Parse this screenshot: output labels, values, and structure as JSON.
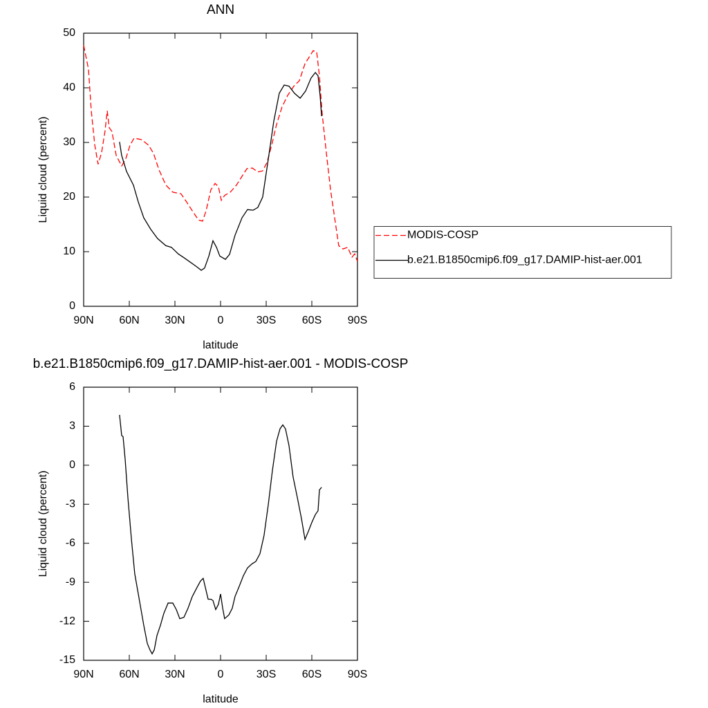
{
  "chart_data": [
    {
      "type": "line",
      "title": "ANN",
      "xlabel": "latitude",
      "ylabel": "Liquid cloud (percent)",
      "xlim": [
        90,
        -90
      ],
      "xticks": [
        {
          "value": 90,
          "label": "90N"
        },
        {
          "value": 60,
          "label": "60N"
        },
        {
          "value": 30,
          "label": "30N"
        },
        0,
        {
          "value": -30,
          "label": "30S"
        },
        {
          "value": -60,
          "label": "60S"
        },
        {
          "value": -90,
          "label": "90S"
        }
      ],
      "ylim": [
        0,
        50
      ],
      "yticks": [
        0,
        10,
        20,
        30,
        40,
        50
      ],
      "legend": "right",
      "series": [
        {
          "name": "MODIS-COSP",
          "color": "#ff0000",
          "style": "dashed",
          "x": [
            90,
            86.8,
            85,
            82.7,
            80.5,
            78.2,
            76,
            74.5,
            73.2,
            71.4,
            68.6,
            65,
            62.3,
            59.5,
            56.8,
            51.8,
            47.3,
            44.1,
            40.5,
            36,
            31.4,
            26,
            22.3,
            17.7,
            14.5,
            11.8,
            9.5,
            6.4,
            3.6,
            1.4,
            -0.5,
            -2.7,
            -6.4,
            -10.5,
            -14.1,
            -17.3,
            -20.9,
            -24.5,
            -27.7,
            -30.5,
            -33.6,
            -36.8,
            -40.4,
            -44.1,
            -48.2,
            -51.8,
            -55.5,
            -59.1,
            -60.9,
            -63.2,
            -65,
            -66.8,
            -69.5,
            -72.3,
            -75,
            -77.7,
            -80.5,
            -83.6,
            -86.4,
            -88.2,
            -90
          ],
          "values": [
            47.8,
            43.4,
            35.8,
            29.5,
            26,
            28.2,
            32,
            35.8,
            32.7,
            32,
            27.6,
            25.7,
            27,
            29.5,
            30.8,
            30.5,
            29.5,
            28,
            25,
            22.2,
            20.9,
            20.6,
            19.1,
            17.1,
            15.8,
            15.6,
            17.5,
            21.3,
            22.5,
            21.9,
            19.4,
            20.3,
            20.9,
            22.2,
            23.8,
            25.2,
            25.3,
            24.6,
            24.8,
            26.3,
            29.5,
            33.3,
            36.5,
            38.6,
            40.3,
            41.3,
            44.4,
            46,
            46.8,
            46.6,
            42.2,
            35.2,
            28.2,
            21.3,
            16.2,
            11.1,
            10.5,
            10.8,
            9,
            9.6,
            8.2
          ]
        },
        {
          "name": "b.e21.B1850cmip6.f09_g17.DAMIP-hist-aer.001",
          "color": "#000000",
          "style": "solid",
          "x": [
            66.4,
            65,
            61.8,
            57.3,
            54.1,
            50.5,
            45.9,
            41.4,
            36,
            32.3,
            27.8,
            24.1,
            19.5,
            15.5,
            12.7,
            10.5,
            7.7,
            5,
            2.7,
            0.5,
            -3.2,
            -5.9,
            -9.5,
            -14.1,
            -17.7,
            -21.4,
            -24.5,
            -27.7,
            -31.4,
            -35,
            -38.6,
            -41.8,
            -45,
            -48.6,
            -52.3,
            -55.9,
            -59.5,
            -62.3,
            -64.1,
            -65.5,
            -66.4
          ],
          "values": [
            30.1,
            27.6,
            24.7,
            22.2,
            19.1,
            16.2,
            14.1,
            12.4,
            11.1,
            10.8,
            9.6,
            8.9,
            8,
            7.2,
            6.6,
            7,
            9.2,
            12,
            10.8,
            9.2,
            8.6,
            9.5,
            13,
            16.2,
            17.7,
            17.6,
            18.1,
            20,
            27,
            33.9,
            39,
            40.5,
            40.3,
            39,
            38.1,
            39.4,
            41.8,
            42.8,
            42.2,
            38.4,
            34.8
          ]
        }
      ]
    },
    {
      "type": "line",
      "title": "b.e21.B1850cmip6.f09_g17.DAMIP-hist-aer.001 - MODIS-COSP",
      "xlabel": "latitude",
      "ylabel": "Liquid cloud (percent)",
      "xlim": [
        90,
        -90
      ],
      "xticks": [
        {
          "value": 90,
          "label": "90N"
        },
        {
          "value": 60,
          "label": "60N"
        },
        {
          "value": 30,
          "label": "30N"
        },
        0,
        {
          "value": -30,
          "label": "30S"
        },
        {
          "value": -60,
          "label": "60S"
        },
        {
          "value": -90,
          "label": "90S"
        }
      ],
      "ylim": [
        -15,
        6
      ],
      "yticks": [
        -15,
        -12,
        -9,
        -6,
        -3,
        0,
        3,
        6
      ],
      "series": [
        {
          "color": "#000000",
          "style": "solid",
          "x": [
            66.4,
            65,
            64.1,
            62.7,
            60.9,
            58.6,
            56.4,
            53.2,
            50.5,
            48.2,
            46.4,
            45,
            43.6,
            41.8,
            39.5,
            37.3,
            34.5,
            31.4,
            29.1,
            26.8,
            24.1,
            21.4,
            18.6,
            15.5,
            13.2,
            11.4,
            10,
            8.2,
            6.4,
            5,
            3.2,
            1.4,
            0,
            -1.4,
            -2.7,
            -5.5,
            -7.7,
            -9.5,
            -12.3,
            -15,
            -17.7,
            -20.5,
            -23.2,
            -25.9,
            -28.6,
            -31.4,
            -34.1,
            -36.8,
            -39.1,
            -40.9,
            -42.7,
            -45,
            -47.7,
            -50.5,
            -53.2,
            -55.5,
            -57.7,
            -60,
            -62.3,
            -64.1,
            -65,
            -66.4
          ],
          "values": [
            3.87,
            2.28,
            2.2,
            0.4,
            -2.5,
            -5.7,
            -8.35,
            -10.5,
            -12.3,
            -13.7,
            -14.2,
            -14.5,
            -14.2,
            -13.1,
            -12.3,
            -11.4,
            -10.6,
            -10.6,
            -11.1,
            -11.8,
            -11.7,
            -11,
            -10.1,
            -9.4,
            -8.9,
            -8.7,
            -9.4,
            -10.3,
            -10.3,
            -10.4,
            -11.1,
            -10.7,
            -9.9,
            -11,
            -11.8,
            -11.5,
            -11,
            -10.1,
            -9.3,
            -8.5,
            -7.9,
            -7.6,
            -7.4,
            -6.8,
            -5.4,
            -3,
            -0.4,
            1.85,
            2.8,
            3.1,
            2.8,
            1.5,
            -0.9,
            -2.5,
            -4.1,
            -5.7,
            -5.1,
            -4.4,
            -3.8,
            -3.5,
            -1.9,
            -1.7
          ]
        }
      ]
    }
  ]
}
